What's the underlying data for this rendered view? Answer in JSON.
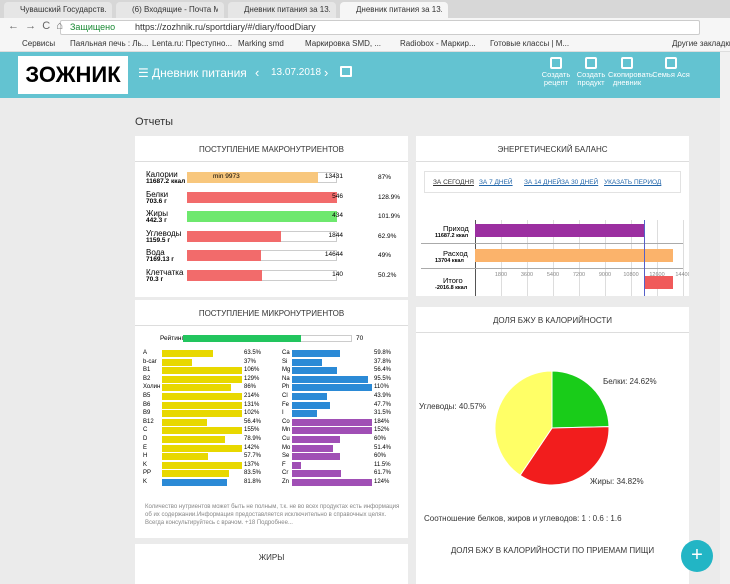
{
  "browser": {
    "tabs": [
      "Чувашский Государств...",
      "(6) Входящие - Почта М...",
      "Дневник питания за 13...",
      "Дневник питания за 13..."
    ],
    "security": "Защищено",
    "url": "https://zozhnik.ru/sportdiary/#/diary/foodDiary",
    "bookmarks": [
      "Сервисы",
      "Паяльная печь : Ль...",
      "Lenta.ru: Преступно...",
      "Marking smd",
      "Маркировка SMD, ...",
      "Radiobox - Маркир...",
      "Готовые классы | M...",
      "Другие закладки"
    ]
  },
  "header": {
    "logo": "ЗОЖНИК",
    "title": "Дневник питания",
    "date": "13.07.2018",
    "actions": [
      "Создать рецепт",
      "Создать продукт",
      "Скопировать дневник",
      "Семья Ася"
    ]
  },
  "section": "Отчеты",
  "macro": {
    "title": "ПОСТУПЛЕНИЕ МАКРОНУТРИЕНТОВ",
    "rows": [
      {
        "name": "Калории",
        "amount": "11687.2 ккал",
        "min": "min 9973",
        "target": 13431,
        "percent": 87,
        "percent_label": "87%",
        "color": "#f8c77d"
      },
      {
        "name": "Белки",
        "amount": "703.6 г",
        "target": 546,
        "percent": 128.9,
        "percent_label": "128.9%",
        "color": "#f26b6b"
      },
      {
        "name": "Жиры",
        "amount": "442.3 г",
        "target": 434,
        "percent": 101.9,
        "percent_label": "101.9%",
        "color": "#6ee86e"
      },
      {
        "name": "Углеводы",
        "amount": "1159.5 г",
        "target": 1844,
        "percent": 62.9,
        "percent_label": "62.9%",
        "color": "#f26b6b"
      },
      {
        "name": "Вода",
        "amount": "7169.13 г",
        "target": 14644,
        "percent": 49,
        "percent_label": "49%",
        "color": "#f26b6b"
      },
      {
        "name": "Клетчатка",
        "amount": "70.3 г",
        "target": 140,
        "percent": 50.2,
        "percent_label": "50.2%",
        "color": "#f26b6b"
      }
    ]
  },
  "micro": {
    "title": "ПОСТУПЛЕНИЕ МИКРОНУТРИЕНТОВ",
    "rating_label": "Рейтинг",
    "rating": 70,
    "left": [
      {
        "name": "A",
        "percent": 63.5,
        "label": "63.5%",
        "color": "#e8d800"
      },
      {
        "name": "b-car",
        "percent": 37,
        "label": "37%",
        "color": "#e8d800"
      },
      {
        "name": "B1",
        "percent": 106,
        "label": "106%",
        "color": "#e8d800"
      },
      {
        "name": "B2",
        "percent": 129,
        "label": "129%",
        "color": "#e8d800"
      },
      {
        "name": "Холин",
        "percent": 86,
        "label": "86%",
        "color": "#e8d800"
      },
      {
        "name": "B5",
        "percent": 214,
        "label": "214%",
        "color": "#e8d800"
      },
      {
        "name": "B6",
        "percent": 131,
        "label": "131%",
        "color": "#e8d800"
      },
      {
        "name": "B9",
        "percent": 102,
        "label": "102%",
        "color": "#e8d800"
      },
      {
        "name": "B12",
        "percent": 56.4,
        "label": "56.4%",
        "color": "#e8d800"
      },
      {
        "name": "C",
        "percent": 155,
        "label": "155%",
        "color": "#e8d800"
      },
      {
        "name": "D",
        "percent": 78.9,
        "label": "78.9%",
        "color": "#e8d800"
      },
      {
        "name": "E",
        "percent": 142,
        "label": "142%",
        "color": "#e8d800"
      },
      {
        "name": "H",
        "percent": 57.7,
        "label": "57.7%",
        "color": "#e8d800"
      },
      {
        "name": "K",
        "percent": 137,
        "label": "137%",
        "color": "#e8d800"
      },
      {
        "name": "PP",
        "percent": 83.5,
        "label": "83.5%",
        "color": "#e8d800"
      },
      {
        "name": "K",
        "percent": 81.8,
        "label": "81.8%",
        "color": "#2b8ad6"
      }
    ],
    "right": [
      {
        "name": "Ca",
        "percent": 59.8,
        "label": "59.8%",
        "color": "#2b8ad6"
      },
      {
        "name": "Si",
        "percent": 37.8,
        "label": "37.8%",
        "color": "#2b8ad6"
      },
      {
        "name": "Mg",
        "percent": 56.4,
        "label": "56.4%",
        "color": "#2b8ad6"
      },
      {
        "name": "Na",
        "percent": 95.5,
        "label": "95.5%",
        "color": "#2b8ad6"
      },
      {
        "name": "Ph",
        "percent": 110,
        "label": "110%",
        "color": "#2b8ad6"
      },
      {
        "name": "Cl",
        "percent": 43.9,
        "label": "43.9%",
        "color": "#2b8ad6"
      },
      {
        "name": "Fe",
        "percent": 47.7,
        "label": "47.7%",
        "color": "#2b8ad6"
      },
      {
        "name": "I",
        "percent": 31.5,
        "label": "31.5%",
        "color": "#2b8ad6"
      },
      {
        "name": "Co",
        "percent": 184,
        "label": "184%",
        "color": "#a04fb5"
      },
      {
        "name": "Mn",
        "percent": 152,
        "label": "152%",
        "color": "#a04fb5"
      },
      {
        "name": "Cu",
        "percent": 60,
        "label": "60%",
        "color": "#a04fb5"
      },
      {
        "name": "Mo",
        "percent": 51.4,
        "label": "51.4%",
        "color": "#a04fb5"
      },
      {
        "name": "Se",
        "percent": 60,
        "label": "60%",
        "color": "#a04fb5"
      },
      {
        "name": "F",
        "percent": 11.5,
        "label": "11.5%",
        "color": "#a04fb5"
      },
      {
        "name": "Cr",
        "percent": 61.7,
        "label": "61.7%",
        "color": "#a04fb5"
      },
      {
        "name": "Zn",
        "percent": 124,
        "label": "124%",
        "color": "#a04fb5"
      }
    ],
    "note": "Количество нутриентов может быть не полным, т.к. не во всех продуктах есть информация об их содержании.Информация предоставляется исключительно в справочных целях. Всегда консультируйтесь с врачом. +18 Подробнее..."
  },
  "energy": {
    "title": "ЭНЕРГЕТИЧЕСКИЙ БАЛАНС",
    "periods": [
      "ЗА СЕГОДНЯ",
      "ЗА 7 ДНЕЙ",
      "ЗА 14 ДНЕЙ",
      "ЗА 30 ДНЕЙ",
      "УКАЗАТЬ ПЕРИОД"
    ],
    "intake_name": "Приход",
    "intake": 11687.2,
    "intake_label": "11687.2 ккал",
    "expense_name": "Расход",
    "expense": 13704,
    "expense_label": "13704 ккал",
    "total_name": "Итого",
    "total": -2016.8,
    "total_label": "-2016.8 ккал",
    "xlim": [
      0,
      14400
    ],
    "xticks": [
      1800,
      3600,
      5400,
      7200,
      9000,
      10800,
      12600,
      14400
    ]
  },
  "pie": {
    "title": "ДОЛЯ БЖУ В КАЛОРИЙНОСТИ",
    "slices": [
      {
        "label": "Белки: 24.62%",
        "value": 24.62,
        "color": "#19cc19"
      },
      {
        "label": "Жиры: 34.82%",
        "value": 34.82,
        "color": "#f21d1d"
      },
      {
        "label": "Углеводы: 40.57%",
        "value": 40.57,
        "color": "#ffff66"
      }
    ],
    "caption": "Соотношение белков, жиров и углеводов: 1 : 0.6 : 1.6"
  },
  "fat_panel": {
    "title": "ЖИРЫ"
  },
  "meals_panel": {
    "title": "ДОЛЯ БЖУ В КАЛОРИЙНОСТИ ПО ПРИЕМАМ ПИЩИ"
  }
}
